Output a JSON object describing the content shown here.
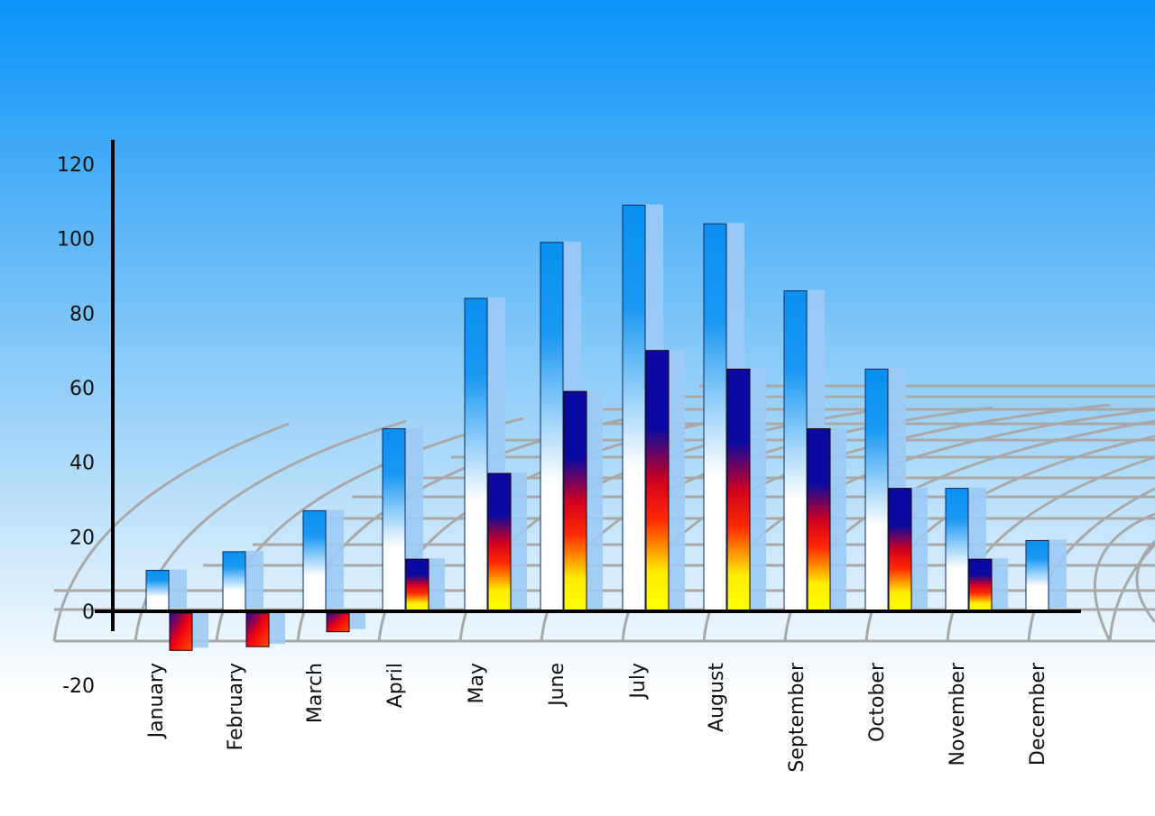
{
  "chart_data": {
    "type": "bar",
    "title": "",
    "xlabel": "",
    "ylabel": "",
    "ylim": [
      -20,
      120
    ],
    "yticks": [
      -20,
      0,
      20,
      40,
      60,
      80,
      100,
      120
    ],
    "grid": "decorative perspective grid",
    "legend": "none",
    "categories": [
      "January",
      "February",
      "March",
      "April",
      "May",
      "June",
      "July",
      "August",
      "September",
      "October",
      "November",
      "December"
    ],
    "series": [
      {
        "values": [
          11,
          16,
          27,
          49,
          84,
          99,
          109,
          104,
          86,
          65,
          33,
          19
        ],
        "color": "#0a8ff0"
      },
      {
        "values": [
          -10,
          -9,
          -5,
          14,
          37,
          59,
          70,
          65,
          49,
          33,
          14,
          null
        ],
        "color": "#0a0aa0"
      }
    ],
    "colors": {
      "background_top": "#0b93f7",
      "background_bottom": "#ffffff",
      "axis": "#000000",
      "grid": "#a8a8a8"
    }
  }
}
